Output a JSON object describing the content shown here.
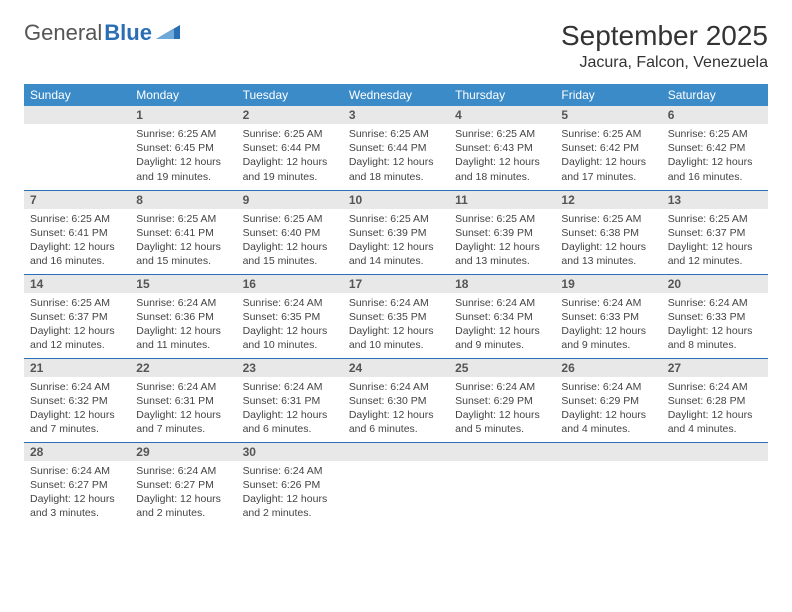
{
  "brand": {
    "text_part1": "General",
    "text_part2": "Blue",
    "color_primary": "#2a6fb5",
    "color_text": "#555555"
  },
  "header": {
    "month_title": "September 2025",
    "location": "Jacura, Falcon, Venezuela"
  },
  "styling": {
    "header_bg": "#3b8bc9",
    "header_fg": "#ffffff",
    "daynum_bg": "#e8e8e8",
    "rule_color": "#2a6fb5",
    "body_font_size_pt": 10.5,
    "title_font_size_pt": 28,
    "location_font_size_pt": 16
  },
  "weekdays": [
    "Sunday",
    "Monday",
    "Tuesday",
    "Wednesday",
    "Thursday",
    "Friday",
    "Saturday"
  ],
  "calendar": {
    "first_weekday_index": 1,
    "days": [
      {
        "n": 1,
        "sunrise": "6:25 AM",
        "sunset": "6:45 PM",
        "daylight": "12 hours and 19 minutes."
      },
      {
        "n": 2,
        "sunrise": "6:25 AM",
        "sunset": "6:44 PM",
        "daylight": "12 hours and 19 minutes."
      },
      {
        "n": 3,
        "sunrise": "6:25 AM",
        "sunset": "6:44 PM",
        "daylight": "12 hours and 18 minutes."
      },
      {
        "n": 4,
        "sunrise": "6:25 AM",
        "sunset": "6:43 PM",
        "daylight": "12 hours and 18 minutes."
      },
      {
        "n": 5,
        "sunrise": "6:25 AM",
        "sunset": "6:42 PM",
        "daylight": "12 hours and 17 minutes."
      },
      {
        "n": 6,
        "sunrise": "6:25 AM",
        "sunset": "6:42 PM",
        "daylight": "12 hours and 16 minutes."
      },
      {
        "n": 7,
        "sunrise": "6:25 AM",
        "sunset": "6:41 PM",
        "daylight": "12 hours and 16 minutes."
      },
      {
        "n": 8,
        "sunrise": "6:25 AM",
        "sunset": "6:41 PM",
        "daylight": "12 hours and 15 minutes."
      },
      {
        "n": 9,
        "sunrise": "6:25 AM",
        "sunset": "6:40 PM",
        "daylight": "12 hours and 15 minutes."
      },
      {
        "n": 10,
        "sunrise": "6:25 AM",
        "sunset": "6:39 PM",
        "daylight": "12 hours and 14 minutes."
      },
      {
        "n": 11,
        "sunrise": "6:25 AM",
        "sunset": "6:39 PM",
        "daylight": "12 hours and 13 minutes."
      },
      {
        "n": 12,
        "sunrise": "6:25 AM",
        "sunset": "6:38 PM",
        "daylight": "12 hours and 13 minutes."
      },
      {
        "n": 13,
        "sunrise": "6:25 AM",
        "sunset": "6:37 PM",
        "daylight": "12 hours and 12 minutes."
      },
      {
        "n": 14,
        "sunrise": "6:25 AM",
        "sunset": "6:37 PM",
        "daylight": "12 hours and 12 minutes."
      },
      {
        "n": 15,
        "sunrise": "6:24 AM",
        "sunset": "6:36 PM",
        "daylight": "12 hours and 11 minutes."
      },
      {
        "n": 16,
        "sunrise": "6:24 AM",
        "sunset": "6:35 PM",
        "daylight": "12 hours and 10 minutes."
      },
      {
        "n": 17,
        "sunrise": "6:24 AM",
        "sunset": "6:35 PM",
        "daylight": "12 hours and 10 minutes."
      },
      {
        "n": 18,
        "sunrise": "6:24 AM",
        "sunset": "6:34 PM",
        "daylight": "12 hours and 9 minutes."
      },
      {
        "n": 19,
        "sunrise": "6:24 AM",
        "sunset": "6:33 PM",
        "daylight": "12 hours and 9 minutes."
      },
      {
        "n": 20,
        "sunrise": "6:24 AM",
        "sunset": "6:33 PM",
        "daylight": "12 hours and 8 minutes."
      },
      {
        "n": 21,
        "sunrise": "6:24 AM",
        "sunset": "6:32 PM",
        "daylight": "12 hours and 7 minutes."
      },
      {
        "n": 22,
        "sunrise": "6:24 AM",
        "sunset": "6:31 PM",
        "daylight": "12 hours and 7 minutes."
      },
      {
        "n": 23,
        "sunrise": "6:24 AM",
        "sunset": "6:31 PM",
        "daylight": "12 hours and 6 minutes."
      },
      {
        "n": 24,
        "sunrise": "6:24 AM",
        "sunset": "6:30 PM",
        "daylight": "12 hours and 6 minutes."
      },
      {
        "n": 25,
        "sunrise": "6:24 AM",
        "sunset": "6:29 PM",
        "daylight": "12 hours and 5 minutes."
      },
      {
        "n": 26,
        "sunrise": "6:24 AM",
        "sunset": "6:29 PM",
        "daylight": "12 hours and 4 minutes."
      },
      {
        "n": 27,
        "sunrise": "6:24 AM",
        "sunset": "6:28 PM",
        "daylight": "12 hours and 4 minutes."
      },
      {
        "n": 28,
        "sunrise": "6:24 AM",
        "sunset": "6:27 PM",
        "daylight": "12 hours and 3 minutes."
      },
      {
        "n": 29,
        "sunrise": "6:24 AM",
        "sunset": "6:27 PM",
        "daylight": "12 hours and 2 minutes."
      },
      {
        "n": 30,
        "sunrise": "6:24 AM",
        "sunset": "6:26 PM",
        "daylight": "12 hours and 2 minutes."
      }
    ]
  },
  "labels": {
    "sunrise_prefix": "Sunrise: ",
    "sunset_prefix": "Sunset: ",
    "daylight_prefix": "Daylight: "
  }
}
